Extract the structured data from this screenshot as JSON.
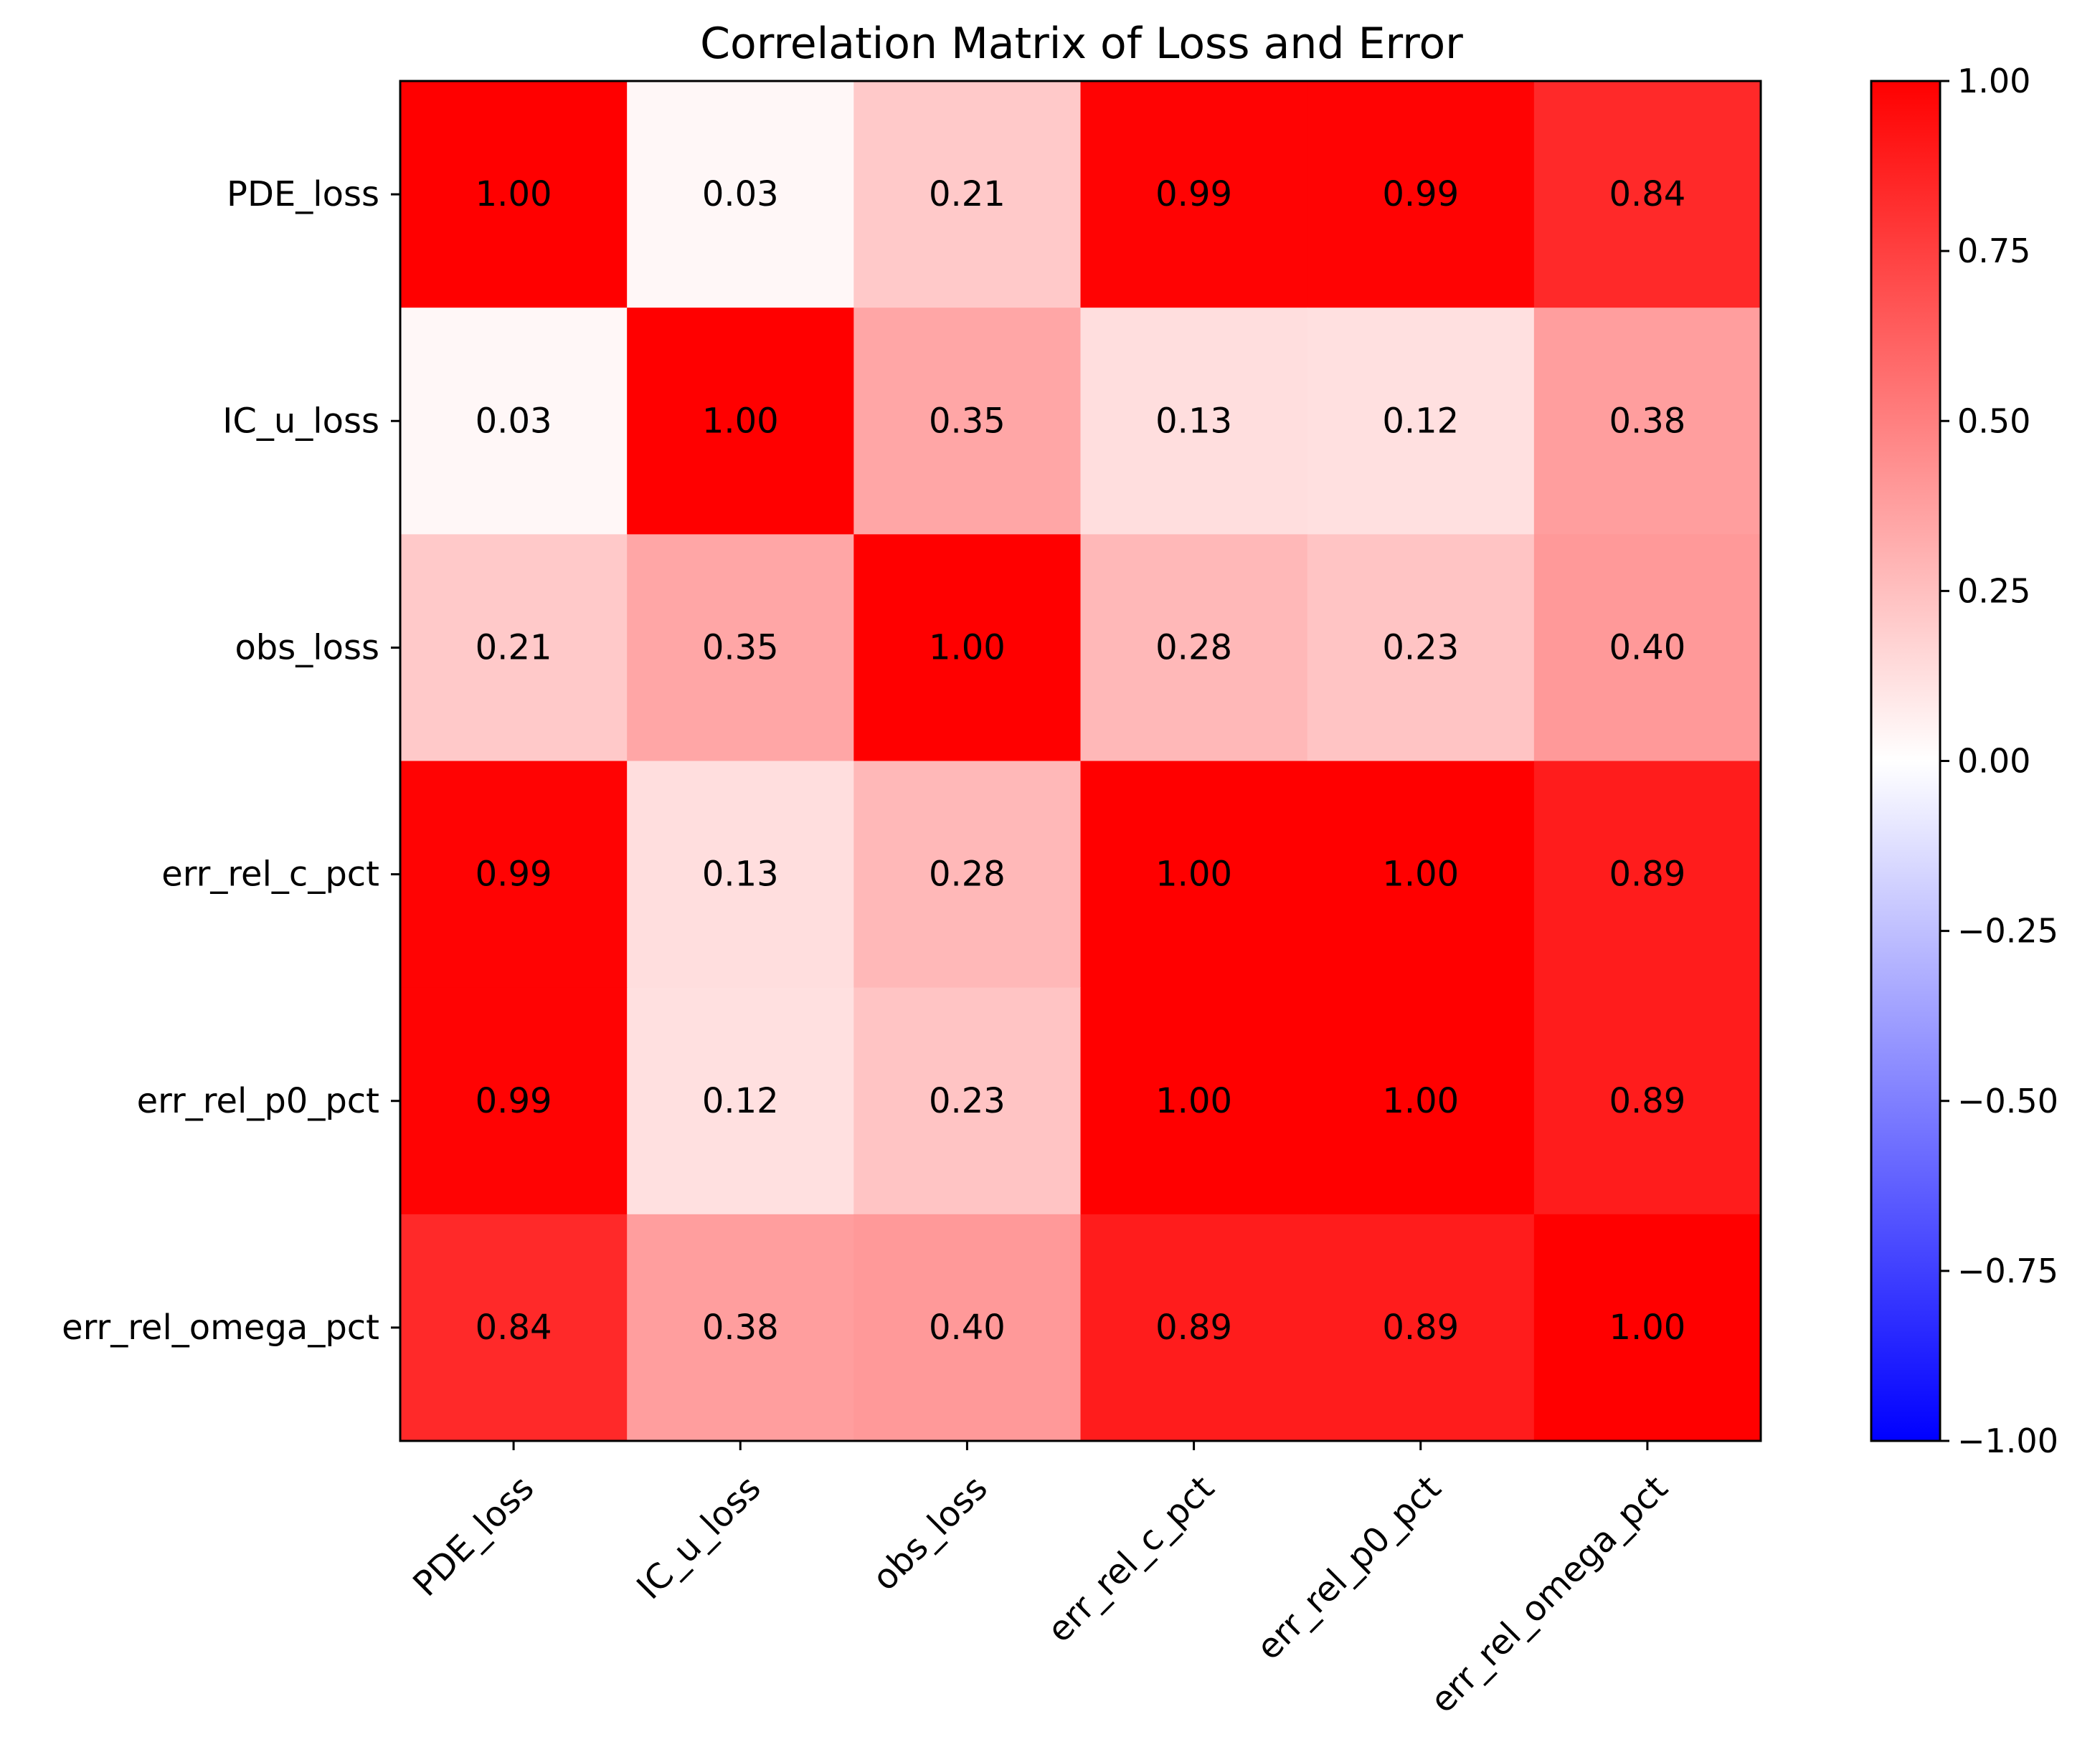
{
  "chart_data": {
    "type": "heatmap",
    "title": "Correlation Matrix of Loss and Error",
    "row_labels": [
      "PDE_loss",
      "IC_u_loss",
      "obs_loss",
      "err_rel_c_pct",
      "err_rel_p0_pct",
      "err_rel_omega_pct"
    ],
    "col_labels": [
      "PDE_loss",
      "IC_u_loss",
      "obs_loss",
      "err_rel_c_pct",
      "err_rel_p0_pct",
      "err_rel_omega_pct"
    ],
    "values": [
      [
        1.0,
        0.03,
        0.21,
        0.99,
        0.99,
        0.84
      ],
      [
        0.03,
        1.0,
        0.35,
        0.13,
        0.12,
        0.38
      ],
      [
        0.21,
        0.35,
        1.0,
        0.28,
        0.23,
        0.4
      ],
      [
        0.99,
        0.13,
        0.28,
        1.0,
        1.0,
        0.89
      ],
      [
        0.99,
        0.12,
        0.23,
        1.0,
        1.0,
        0.89
      ],
      [
        0.84,
        0.38,
        0.4,
        0.89,
        0.89,
        1.0
      ]
    ],
    "cell_labels": [
      [
        "1.00",
        "0.03",
        "0.21",
        "0.99",
        "0.99",
        "0.84"
      ],
      [
        "0.03",
        "1.00",
        "0.35",
        "0.13",
        "0.12",
        "0.38"
      ],
      [
        "0.21",
        "0.35",
        "1.00",
        "0.28",
        "0.23",
        "0.40"
      ],
      [
        "0.99",
        "0.13",
        "0.28",
        "1.00",
        "1.00",
        "0.89"
      ],
      [
        "0.99",
        "0.12",
        "0.23",
        "1.00",
        "1.00",
        "0.89"
      ],
      [
        "0.84",
        "0.38",
        "0.40",
        "0.89",
        "0.89",
        "1.00"
      ]
    ],
    "colormap": "bwr",
    "color_range": [
      -1.0,
      1.0
    ],
    "colorbar_ticks": [
      1.0,
      0.75,
      0.5,
      0.25,
      0.0,
      -0.25,
      -0.5,
      -0.75,
      -1.0
    ],
    "colorbar_tick_labels": [
      "1.00",
      "0.75",
      "0.50",
      "0.25",
      "0.00",
      "−0.25",
      "−0.50",
      "−0.75",
      "−1.00"
    ],
    "colors": {
      "low": "#0000ff",
      "mid": "#ffffff",
      "high": "#ff0000"
    }
  }
}
